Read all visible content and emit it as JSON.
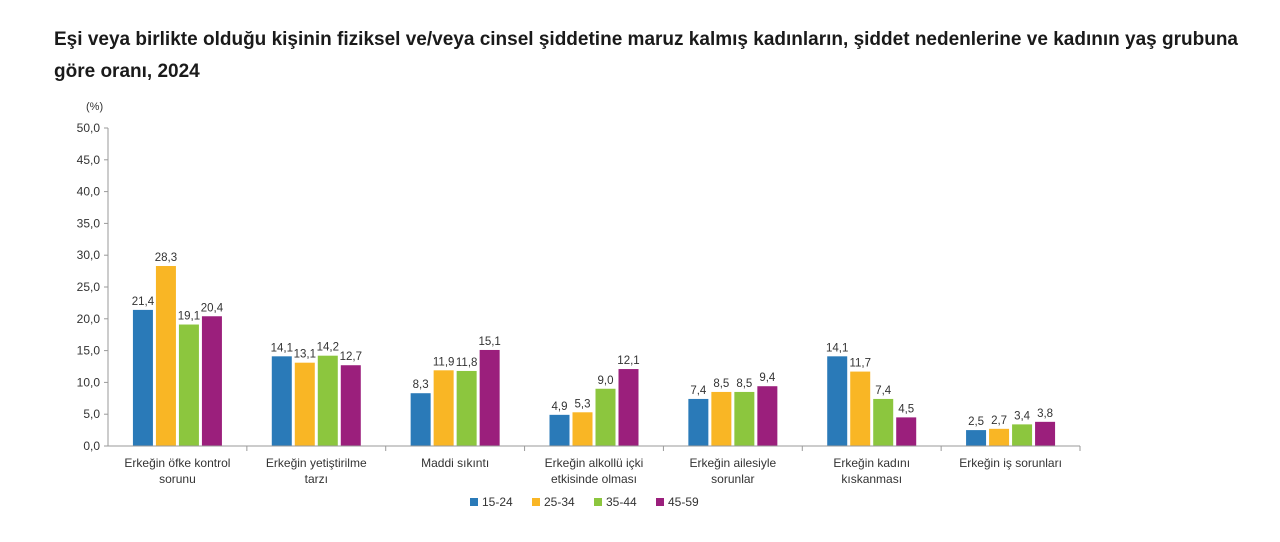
{
  "chart_data": {
    "type": "bar",
    "title": "Eşi veya birlikte olduğu kişinin fiziksel ve/veya cinsel şiddetine maruz kalmış kadınların, şiddet nedenlerine ve kadının yaş grubuna göre oranı, 2024",
    "unit_label": "(%)",
    "ylim": [
      0,
      50
    ],
    "yticks": [
      "0,0",
      "5,0",
      "10,0",
      "15,0",
      "20,0",
      "25,0",
      "30,0",
      "35,0",
      "40,0",
      "45,0",
      "50,0"
    ],
    "categories": [
      [
        "Erkeğin öfke kontrol",
        "sorunu"
      ],
      [
        "Erkeğin yetiştirilme",
        "tarzı"
      ],
      [
        "Maddi sıkıntı"
      ],
      [
        "Erkeğin alkollü içki",
        "etkisinde olması"
      ],
      [
        "Erkeğin ailesiyle",
        "sorunlar"
      ],
      [
        "Erkeğin kadını",
        "kıskanması"
      ],
      [
        "Erkeğin iş sorunları"
      ]
    ],
    "series": [
      {
        "name": "15-24",
        "color": "#2a7ab8",
        "values": [
          21.4,
          14.1,
          8.3,
          4.9,
          7.4,
          14.1,
          2.5
        ],
        "labels": [
          "21,4",
          "14,1",
          "8,3",
          "4,9",
          "7,4",
          "14,1",
          "2,5"
        ]
      },
      {
        "name": "25-34",
        "color": "#f9b625",
        "values": [
          28.3,
          13.1,
          11.9,
          5.3,
          8.5,
          11.7,
          2.7
        ],
        "labels": [
          "28,3",
          "13,1",
          "11,9",
          "5,3",
          "8,5",
          "11,7",
          "2,7"
        ]
      },
      {
        "name": "35-44",
        "color": "#8cc63e",
        "values": [
          19.1,
          14.2,
          11.8,
          9.0,
          8.5,
          7.4,
          3.4
        ],
        "labels": [
          "19,1",
          "14,2",
          "11,8",
          "9,0",
          "8,5",
          "7,4",
          "3,4"
        ]
      },
      {
        "name": "45-59",
        "color": "#9b1f7c",
        "values": [
          20.4,
          12.7,
          15.1,
          12.1,
          9.4,
          4.5,
          3.8
        ],
        "labels": [
          "20,4",
          "12,7",
          "15,1",
          "12,1",
          "9,4",
          "4,5",
          "3,8"
        ]
      }
    ],
    "legend_position": "bottom-center",
    "grid": false
  }
}
